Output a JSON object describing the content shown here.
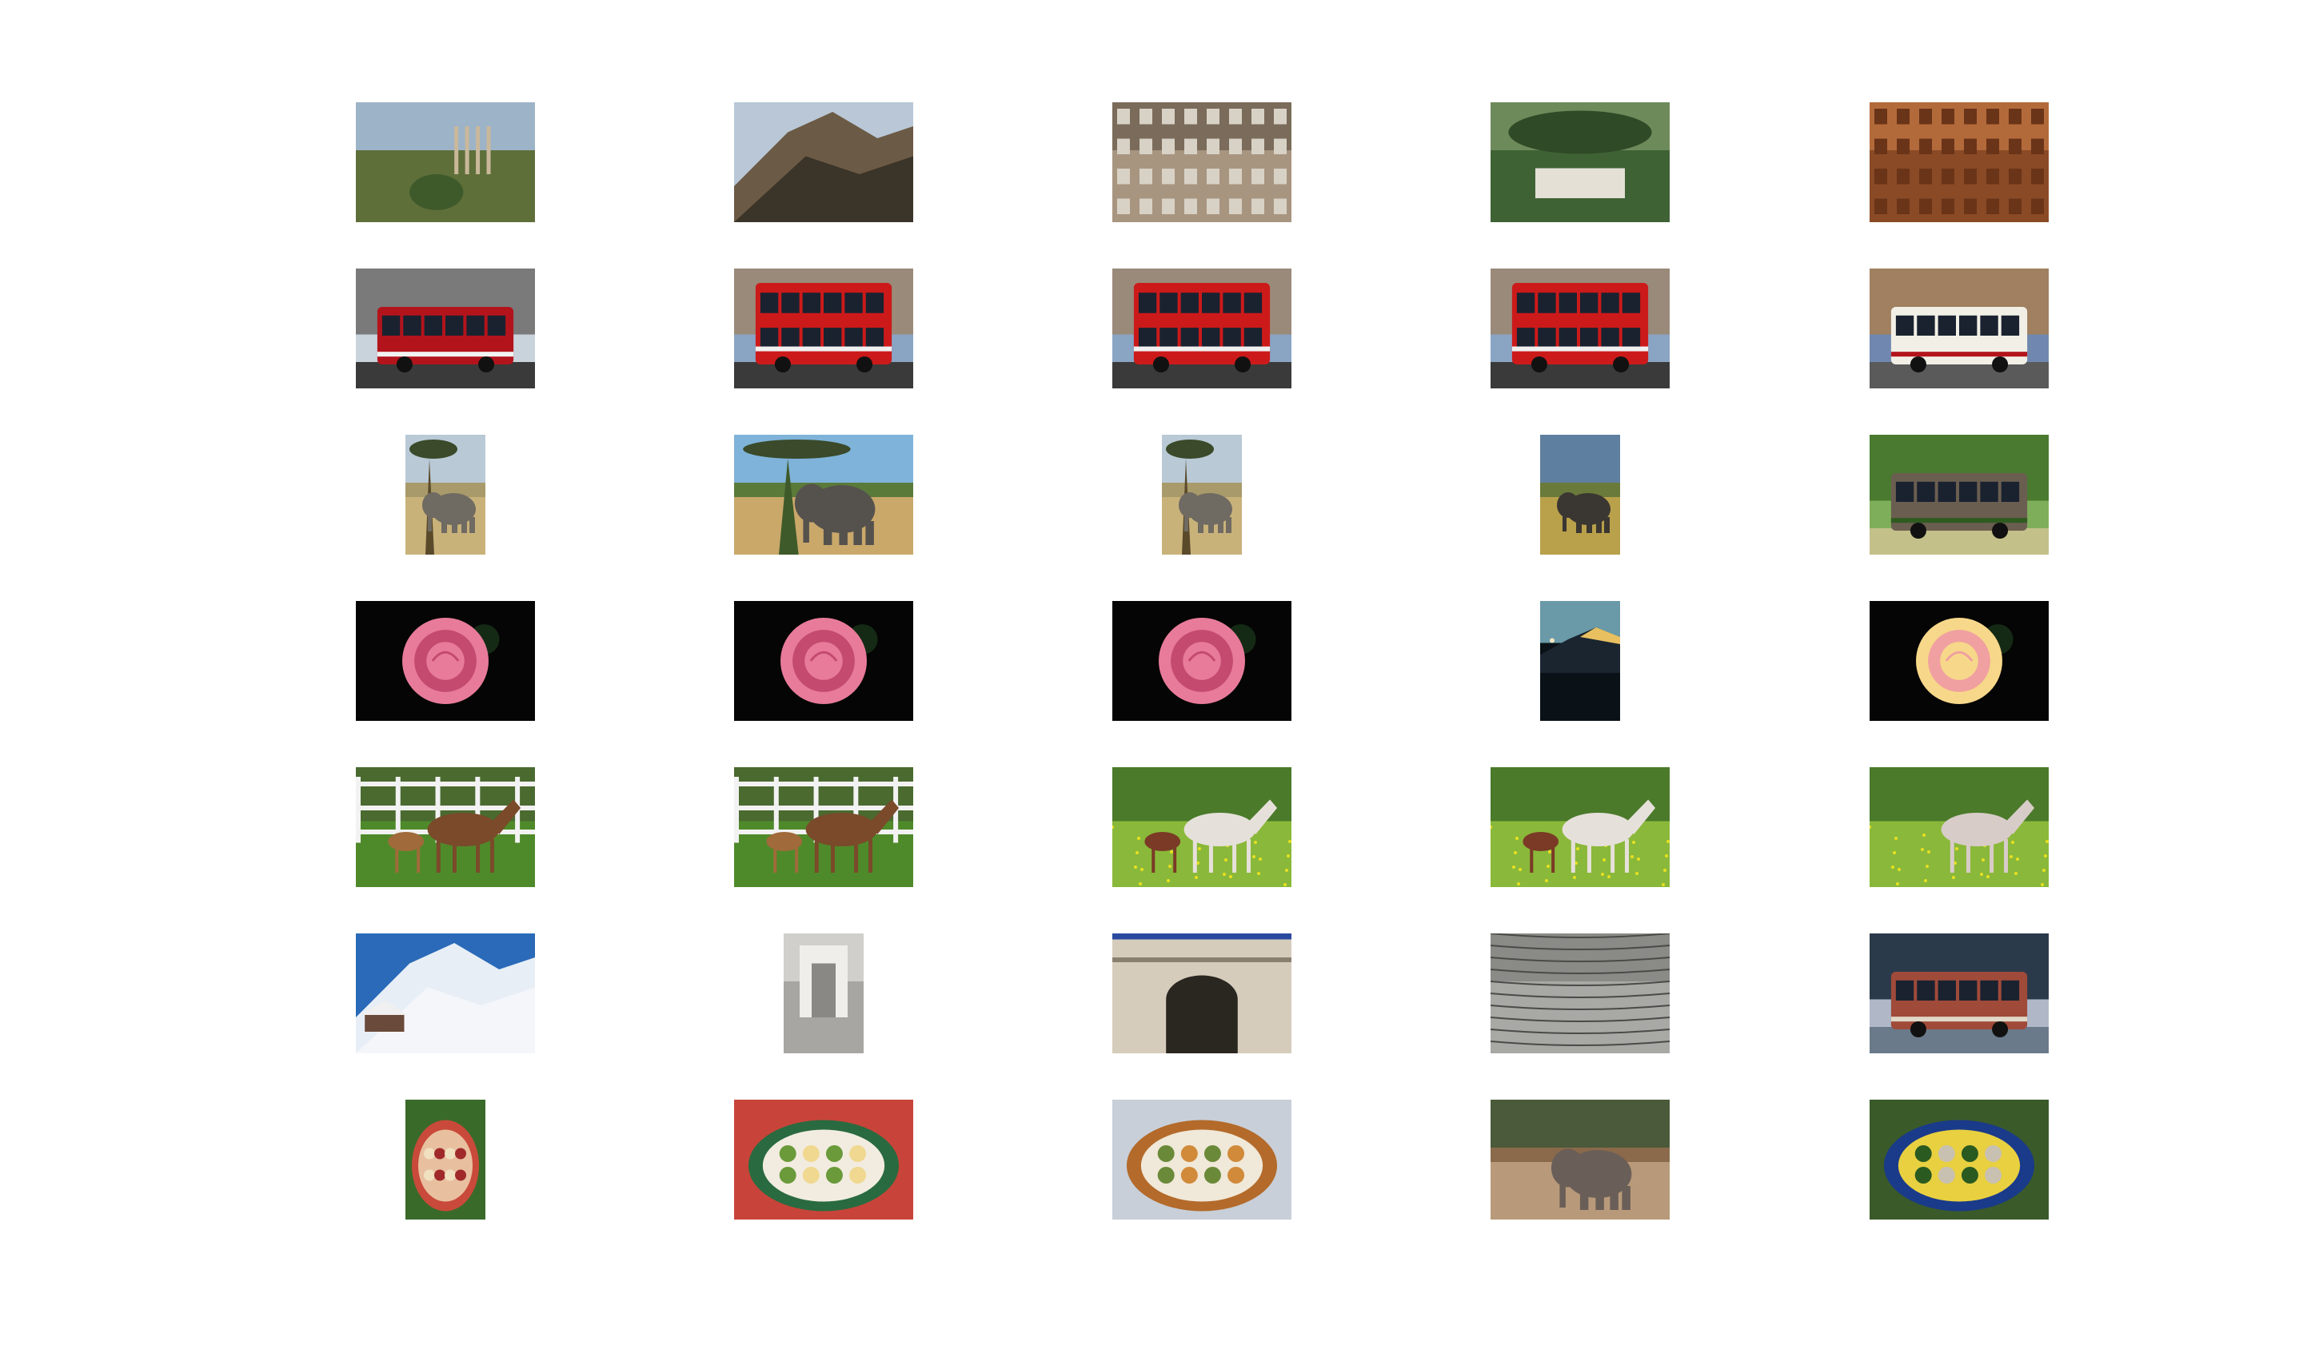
{
  "figure": {
    "rows": [
      {
        "category": "landmarks",
        "images": [
          {
            "subject": "roman-forum-ruins",
            "orientation": "landscape"
          },
          {
            "subject": "mountain-canyon",
            "orientation": "landscape"
          },
          {
            "subject": "fountain-statues",
            "orientation": "landscape"
          },
          {
            "subject": "villa-aerial",
            "orientation": "landscape"
          },
          {
            "subject": "baroque-facade",
            "orientation": "landscape"
          }
        ]
      },
      {
        "category": "buses",
        "images": [
          {
            "subject": "single-decker-red-bus",
            "orientation": "landscape"
          },
          {
            "subject": "double-decker-red-bus",
            "orientation": "landscape"
          },
          {
            "subject": "double-decker-red-bus",
            "orientation": "landscape"
          },
          {
            "subject": "double-decker-red-bus",
            "orientation": "landscape"
          },
          {
            "subject": "single-decker-white-bus",
            "orientation": "landscape"
          }
        ]
      },
      {
        "category": "elephants",
        "images": [
          {
            "subject": "elephant-under-tree",
            "orientation": "portrait"
          },
          {
            "subject": "elephant-savanna",
            "orientation": "landscape"
          },
          {
            "subject": "elephant-under-tree",
            "orientation": "portrait"
          },
          {
            "subject": "elephant-grassland",
            "orientation": "portrait"
          },
          {
            "subject": "elephant-bushes",
            "orientation": "landscape"
          }
        ]
      },
      {
        "category": "roses",
        "images": [
          {
            "subject": "pink-rose",
            "orientation": "landscape"
          },
          {
            "subject": "pink-rose",
            "orientation": "landscape"
          },
          {
            "subject": "pink-rose",
            "orientation": "landscape"
          },
          {
            "subject": "mountain-peak-night",
            "orientation": "portrait"
          },
          {
            "subject": "yellow-pink-rose",
            "orientation": "landscape"
          }
        ]
      },
      {
        "category": "horses",
        "images": [
          {
            "subject": "mare-and-foal-fence",
            "orientation": "landscape"
          },
          {
            "subject": "mare-and-foal-fence",
            "orientation": "landscape"
          },
          {
            "subject": "white-horse-foal-meadow",
            "orientation": "landscape"
          },
          {
            "subject": "white-horse-foal-meadow",
            "orientation": "landscape"
          },
          {
            "subject": "white-horse-grazing",
            "orientation": "landscape"
          }
        ]
      },
      {
        "category": "mixed",
        "images": [
          {
            "subject": "snowy-alps-chalet",
            "orientation": "landscape"
          },
          {
            "subject": "trevi-fountain",
            "orientation": "portrait"
          },
          {
            "subject": "triumphal-arch",
            "orientation": "landscape"
          },
          {
            "subject": "carved-column",
            "orientation": "landscape"
          },
          {
            "subject": "vintage-bus",
            "orientation": "landscape"
          }
        ]
      },
      {
        "category": "food",
        "images": [
          {
            "subject": "food-platter",
            "orientation": "portrait"
          },
          {
            "subject": "plated-dish",
            "orientation": "landscape"
          },
          {
            "subject": "roast-dinner-spread",
            "orientation": "landscape"
          },
          {
            "subject": "elephant-forest",
            "orientation": "landscape"
          },
          {
            "subject": "seafood-platter",
            "orientation": "landscape"
          }
        ]
      }
    ]
  }
}
